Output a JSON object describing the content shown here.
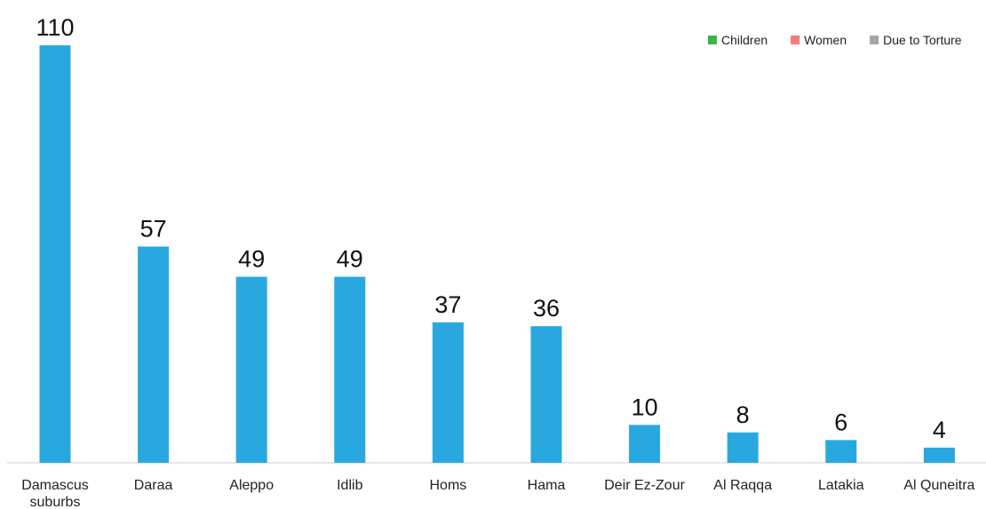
{
  "chart_data": {
    "type": "bar",
    "categories": [
      [
        "Damascus",
        "suburbs"
      ],
      [
        "Daraa"
      ],
      [
        "Aleppo"
      ],
      [
        "Idlib"
      ],
      [
        "Homs"
      ],
      [
        "Hama"
      ],
      [
        "Deir Ez-Zour"
      ],
      [
        "Al Raqqa"
      ],
      [
        "Latakia"
      ],
      [
        "Al Quneitra"
      ]
    ],
    "values": [
      110,
      57,
      49,
      49,
      37,
      36,
      10,
      8,
      6,
      4
    ],
    "data_labels": [
      "110",
      "57",
      "49",
      "49",
      "37",
      "36",
      "10",
      "8",
      "6",
      "4"
    ],
    "bar_color": "#29A8E0",
    "ylim": [
      0,
      110
    ],
    "grid": false,
    "legend": {
      "placement": "top-right",
      "items": [
        {
          "label": "Children",
          "color": "#3DB54A"
        },
        {
          "label": "Women",
          "color": "#F07C7C"
        },
        {
          "label": "Due to Torture",
          "color": "#A6A6A6"
        }
      ]
    }
  }
}
